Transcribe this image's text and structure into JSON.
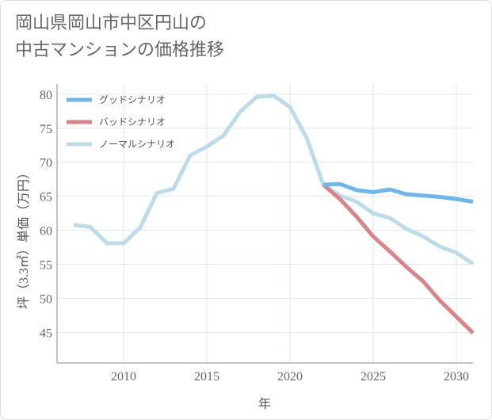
{
  "title_lines": [
    "岡山県岡山市中区円山の",
    "中古マンションの価格推移"
  ],
  "chart_data": {
    "type": "line",
    "xlabel": "年",
    "ylabel": "坪（3.3㎡）単価（万円）",
    "xlim": [
      2006,
      2031
    ],
    "ylim": [
      40.5,
      81.5
    ],
    "xticks": [
      2010,
      2015,
      2020,
      2025,
      2030
    ],
    "yticks": [
      45,
      50,
      55,
      60,
      65,
      70,
      75,
      80
    ],
    "grid": true,
    "legend_position": "top-left",
    "series": [
      {
        "name": "グッドシナリオ",
        "color": "#6cb8ec",
        "x": [
          2022,
          2023,
          2024,
          2025,
          2026,
          2027,
          2028,
          2029,
          2030,
          2031
        ],
        "y": [
          66.7,
          66.8,
          65.9,
          65.6,
          66.0,
          65.3,
          65.1,
          64.9,
          64.6,
          64.2
        ]
      },
      {
        "name": "バッドシナリオ",
        "color": "#d9848a",
        "x": [
          2022,
          2023,
          2024,
          2025,
          2026,
          2027,
          2028,
          2029,
          2030,
          2031
        ],
        "y": [
          66.7,
          64.6,
          62.0,
          59.1,
          56.9,
          54.6,
          52.5,
          49.7,
          47.3,
          44.9
        ]
      },
      {
        "name": "ノーマルシナリオ",
        "color": "#bcdcea",
        "x": [
          2007,
          2008,
          2009,
          2010,
          2011,
          2012,
          2013,
          2014,
          2015,
          2016,
          2017,
          2018,
          2019,
          2020,
          2021,
          2022,
          2023,
          2024,
          2025,
          2026,
          2027,
          2028,
          2029,
          2030,
          2031
        ],
        "y": [
          60.8,
          60.5,
          58.1,
          58.1,
          60.4,
          65.5,
          66.1,
          71.0,
          72.3,
          73.9,
          77.4,
          79.6,
          79.8,
          78.1,
          73.6,
          66.7,
          65.1,
          64.2,
          62.5,
          61.8,
          60.2,
          59.1,
          57.6,
          56.7,
          55.1
        ]
      }
    ]
  }
}
